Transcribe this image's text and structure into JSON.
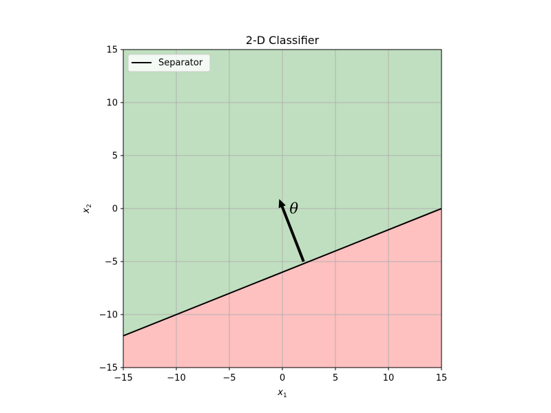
{
  "chart_data": {
    "type": "line",
    "title": "2-D Classifier",
    "xlabel": {
      "base": "x",
      "sub": "1"
    },
    "ylabel": {
      "base": "x",
      "sub": "2"
    },
    "xlim": [
      -15,
      15
    ],
    "ylim": [
      -15,
      15
    ],
    "xticks": [
      -15,
      -10,
      -5,
      0,
      5,
      10,
      15
    ],
    "yticks": [
      -15,
      -10,
      -5,
      0,
      5,
      10,
      15
    ],
    "grid": true,
    "legend": {
      "location": "upper-left",
      "entries": [
        "Separator"
      ]
    },
    "series": [
      {
        "name": "Separator",
        "x": [
          -15,
          15
        ],
        "y": [
          -12,
          0
        ],
        "color": "#000000"
      }
    ],
    "regions": [
      {
        "side": "above separator",
        "color": "#c0dfc0"
      },
      {
        "side": "below separator",
        "color": "#ffc0c0"
      }
    ],
    "annotations": [
      {
        "type": "arrow",
        "from": [
          2,
          -5
        ],
        "to": [
          -0.3,
          0.9
        ],
        "label": "θ",
        "label_at": [
          1,
          0
        ],
        "color": "#000000"
      }
    ]
  }
}
